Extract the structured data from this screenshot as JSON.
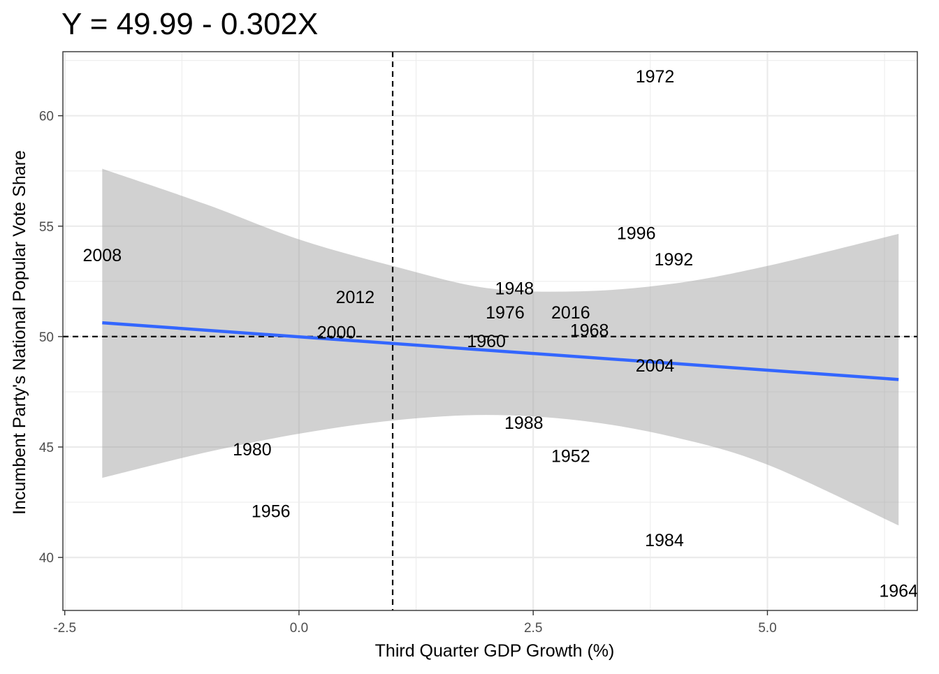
{
  "chart_data": {
    "type": "scatter",
    "title": "Y = 49.99 - 0.302X",
    "xlabel": "Third Quarter GDP Growth (%)",
    "ylabel": "Incumbent Party's National Popular Vote Share",
    "xlim": [
      -2.52,
      6.6
    ],
    "ylim": [
      37.6,
      62.9
    ],
    "x_ticks": [
      -2.5,
      0.0,
      2.5,
      5.0
    ],
    "x_tick_labels": [
      "-2.5",
      "0.0",
      "2.5",
      "5.0"
    ],
    "y_ticks": [
      40,
      45,
      50,
      55,
      60
    ],
    "y_tick_labels": [
      "40",
      "45",
      "50",
      "55",
      "60"
    ],
    "grid": true,
    "reference_lines": {
      "vertical_x": 1.0,
      "horizontal_y": 50.0,
      "style": "dashed"
    },
    "regression": {
      "intercept": 49.99,
      "slope": -0.302,
      "x_range": [
        -2.1,
        6.4
      ]
    },
    "confidence_band": {
      "x": [
        -2.1,
        -1.0,
        0.0,
        1.0,
        2.0,
        3.0,
        4.0,
        5.0,
        6.4
      ],
      "lower": [
        43.6,
        44.75,
        45.6,
        46.2,
        46.45,
        46.2,
        45.45,
        44.2,
        41.45
      ],
      "upper": [
        57.6,
        56.0,
        54.4,
        53.2,
        52.2,
        52.05,
        52.4,
        53.2,
        54.65
      ]
    },
    "points": [
      {
        "label": "1948",
        "x": 2.3,
        "y": 52.2
      },
      {
        "label": "1952",
        "x": 2.9,
        "y": 44.6
      },
      {
        "label": "1956",
        "x": -0.3,
        "y": 42.1
      },
      {
        "label": "1960",
        "x": 2.0,
        "y": 49.8
      },
      {
        "label": "1964",
        "x": 6.4,
        "y": 38.5
      },
      {
        "label": "1968",
        "x": 3.1,
        "y": 50.3
      },
      {
        "label": "1972",
        "x": 3.8,
        "y": 61.8
      },
      {
        "label": "1976",
        "x": 2.2,
        "y": 51.1
      },
      {
        "label": "1980",
        "x": -0.5,
        "y": 44.9
      },
      {
        "label": "1984",
        "x": 3.9,
        "y": 40.8
      },
      {
        "label": "1988",
        "x": 2.4,
        "y": 46.1
      },
      {
        "label": "1992",
        "x": 4.0,
        "y": 53.5
      },
      {
        "label": "1996",
        "x": 3.6,
        "y": 54.7
      },
      {
        "label": "2000",
        "x": 0.4,
        "y": 50.2
      },
      {
        "label": "2004",
        "x": 3.8,
        "y": 48.7
      },
      {
        "label": "2008",
        "x": -2.1,
        "y": 53.7
      },
      {
        "label": "2012",
        "x": 0.6,
        "y": 51.8
      },
      {
        "label": "2016",
        "x": 2.9,
        "y": 51.1
      }
    ],
    "colors": {
      "fit_line": "#3366FF",
      "band": "#999999",
      "band_opacity": 0.45,
      "grid": "#EBEBEB",
      "panel_border": "#333333",
      "ref_line": "#000000",
      "label": "#000000",
      "tick_label": "#4D4D4D"
    }
  }
}
